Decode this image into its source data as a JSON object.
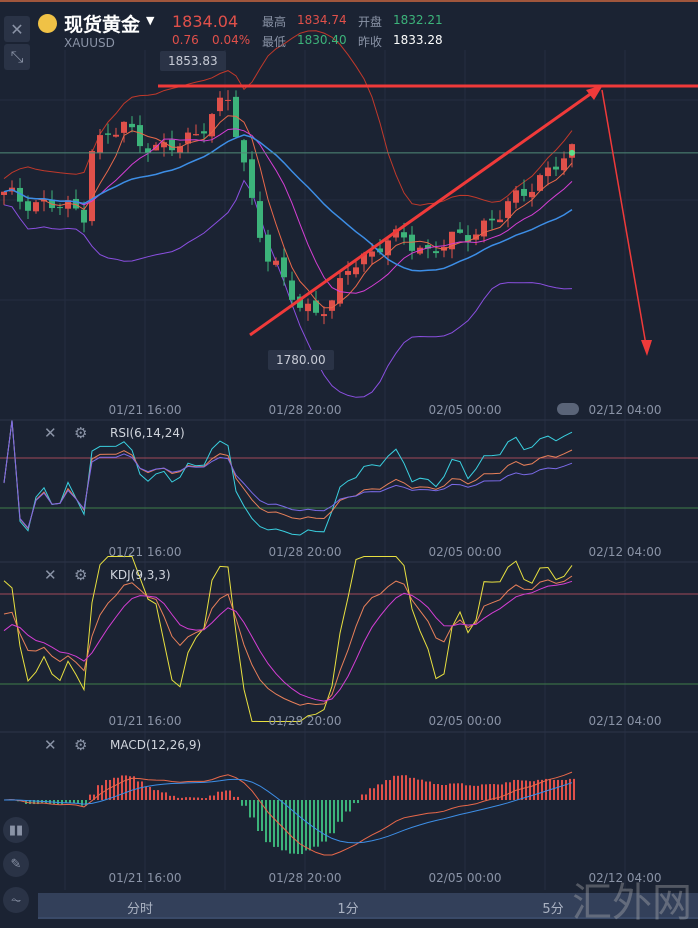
{
  "header": {
    "name": "现货黄金",
    "symbol": "XAUUSD",
    "price": "1834.04",
    "change": "0.76",
    "change_pct": "0.04%",
    "high_label": "最高",
    "high": "1834.74",
    "open_label": "开盘",
    "open": "1832.21",
    "low_label": "最低",
    "low": "1830.40",
    "prev_label": "昨收",
    "prev_close": "1833.28"
  },
  "colors": {
    "up": "#e0504a",
    "down": "#3cb37a",
    "bg": "#1b2333",
    "ma5": "#e8684a",
    "ma10": "#d43ed4",
    "ma20": "#3d8ee6",
    "annotation": "#f03a3a"
  },
  "panels": {
    "rsi": "RSI(6,14,24)",
    "kdj": "KDJ(9,3,3)",
    "macd": "MACD(12,26,9)"
  },
  "tabs": [
    "分时",
    "1分",
    "5分"
  ],
  "watermark": "汇外网",
  "chart_data": {
    "type": "candlestick",
    "x_ticks": [
      "01/21 16:00",
      "01/28 20:00",
      "02/05 00:00",
      "02/12 04:00"
    ],
    "price_markers": {
      "high": "1853.83",
      "low": "1780.00",
      "current": 1834.04
    },
    "key_prices": [
      {
        "t": 0,
        "p": 1821
      },
      {
        "t": 10,
        "p": 1816
      },
      {
        "t": 11,
        "p": 1836
      },
      {
        "t": 15,
        "p": 1842
      },
      {
        "t": 19,
        "p": 1835
      },
      {
        "t": 22,
        "p": 1836
      },
      {
        "t": 27,
        "p": 1848
      },
      {
        "t": 28,
        "p": 1850
      },
      {
        "t": 31,
        "p": 1820
      },
      {
        "t": 33,
        "p": 1802
      },
      {
        "t": 37,
        "p": 1787
      },
      {
        "t": 41,
        "p": 1787
      },
      {
        "t": 43,
        "p": 1799
      },
      {
        "t": 47,
        "p": 1806
      },
      {
        "t": 50,
        "p": 1808
      },
      {
        "t": 53,
        "p": 1804
      },
      {
        "t": 57,
        "p": 1808
      },
      {
        "t": 62,
        "p": 1815
      },
      {
        "t": 66,
        "p": 1825
      },
      {
        "t": 69,
        "p": 1830
      },
      {
        "t": 71,
        "p": 1834
      }
    ],
    "indicators": [
      "MA5",
      "MA10",
      "MA20",
      "BOLL",
      "RSI(6,14,24)",
      "KDJ(9,3,3)",
      "MACD(12,26,9)"
    ],
    "annotations": [
      "horizontal resistance at 1853.83",
      "rising trendline from 1780",
      "projected drop arrow"
    ]
  }
}
